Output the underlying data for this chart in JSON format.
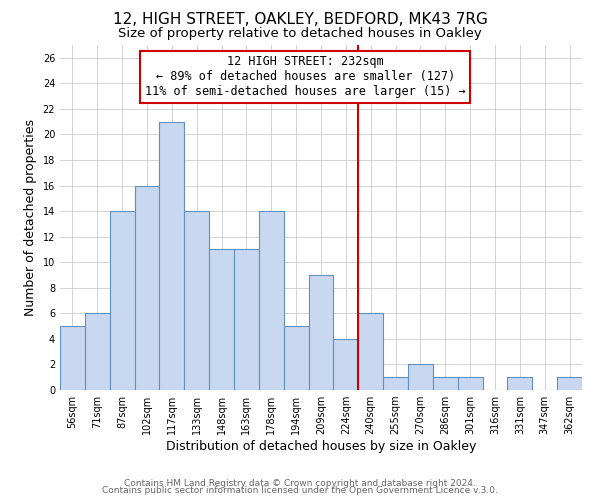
{
  "title": "12, HIGH STREET, OAKLEY, BEDFORD, MK43 7RG",
  "subtitle": "Size of property relative to detached houses in Oakley",
  "xlabel": "Distribution of detached houses by size in Oakley",
  "ylabel": "Number of detached properties",
  "bin_labels": [
    "56sqm",
    "71sqm",
    "87sqm",
    "102sqm",
    "117sqm",
    "133sqm",
    "148sqm",
    "163sqm",
    "178sqm",
    "194sqm",
    "209sqm",
    "224sqm",
    "240sqm",
    "255sqm",
    "270sqm",
    "286sqm",
    "301sqm",
    "316sqm",
    "331sqm",
    "347sqm",
    "362sqm"
  ],
  "counts": [
    5,
    6,
    14,
    16,
    21,
    14,
    11,
    11,
    14,
    5,
    9,
    4,
    6,
    1,
    2,
    1,
    1,
    0,
    1,
    0,
    1
  ],
  "bar_color": "#c8d8f0",
  "bar_edge_color": "#6090c0",
  "vline_x_index": 11.5,
  "vline_color": "#cc0000",
  "annotation_text": "12 HIGH STREET: 232sqm\n← 89% of detached houses are smaller (127)\n11% of semi-detached houses are larger (15) →",
  "annotation_box_color": "#ffffff",
  "annotation_box_edge": "#cc0000",
  "ylim": [
    0,
    27
  ],
  "yticks": [
    0,
    2,
    4,
    6,
    8,
    10,
    12,
    14,
    16,
    18,
    20,
    22,
    24,
    26
  ],
  "footer1": "Contains HM Land Registry data © Crown copyright and database right 2024.",
  "footer2": "Contains public sector information licensed under the Open Government Licence v.3.0.",
  "bg_color": "#ffffff",
  "grid_color": "#cccccc",
  "title_fontsize": 11,
  "subtitle_fontsize": 9.5,
  "axis_label_fontsize": 9,
  "tick_fontsize": 7,
  "annotation_fontsize": 8.5,
  "footer_fontsize": 6.5
}
